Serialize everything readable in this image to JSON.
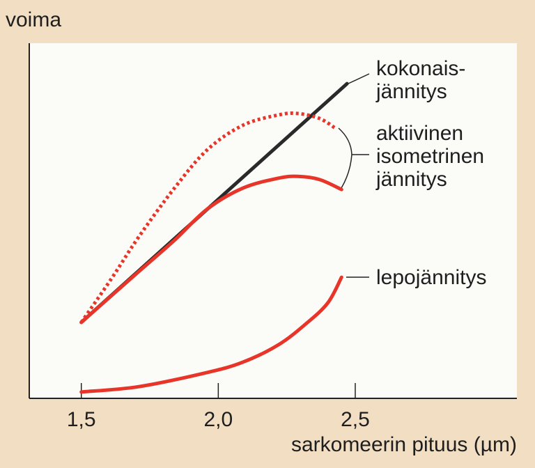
{
  "chart_data": {
    "type": "line",
    "y_label": "voima",
    "x_label": "sarkomeerin pituus (µm)",
    "xlim": [
      1.31,
      3.09
    ],
    "ylim": [
      0,
      100
    ],
    "xticks": [
      {
        "value": 1.5,
        "label": "1,5"
      },
      {
        "value": 2.0,
        "label": "2,0"
      },
      {
        "value": 2.5,
        "label": "2,5"
      }
    ],
    "grid": false,
    "series": [
      {
        "color": "#2a2a2a",
        "style": "solid",
        "x": [
          1.5,
          2.47
        ],
        "values": [
          21.4,
          88.6
        ]
      },
      {
        "color": "#e8352a",
        "style": "dotted",
        "x": [
          1.5,
          1.61,
          1.71,
          1.84,
          1.96,
          2.09,
          2.22,
          2.29,
          2.37,
          2.43
        ],
        "values": [
          21.4,
          33.7,
          45.5,
          59.2,
          70,
          76.9,
          79.8,
          80.2,
          78.8,
          75.9
        ]
      },
      {
        "color": "#e8352a",
        "style": "solid",
        "x": [
          1.5,
          1.71,
          1.84,
          1.96,
          2.09,
          2.22,
          2.29,
          2.37,
          2.45
        ],
        "values": [
          21.4,
          35.7,
          44.5,
          53.3,
          59.2,
          62,
          62.5,
          61.6,
          58.8
        ]
      },
      {
        "color": "#e8352a",
        "style": "solid",
        "x": [
          1.5,
          1.71,
          1.96,
          2.09,
          2.22,
          2.32,
          2.4,
          2.45
        ],
        "values": [
          1.8,
          3.3,
          7.3,
          10.2,
          15.1,
          21,
          26.9,
          34.1
        ]
      }
    ],
    "annotations": [
      {
        "lines": [
          "kokonais-",
          "jännitys"
        ]
      },
      {
        "lines": [
          "aktiivinen",
          "isometrinen",
          "jännitys"
        ]
      },
      {
        "lines": [
          "lepojännitys"
        ]
      }
    ]
  }
}
